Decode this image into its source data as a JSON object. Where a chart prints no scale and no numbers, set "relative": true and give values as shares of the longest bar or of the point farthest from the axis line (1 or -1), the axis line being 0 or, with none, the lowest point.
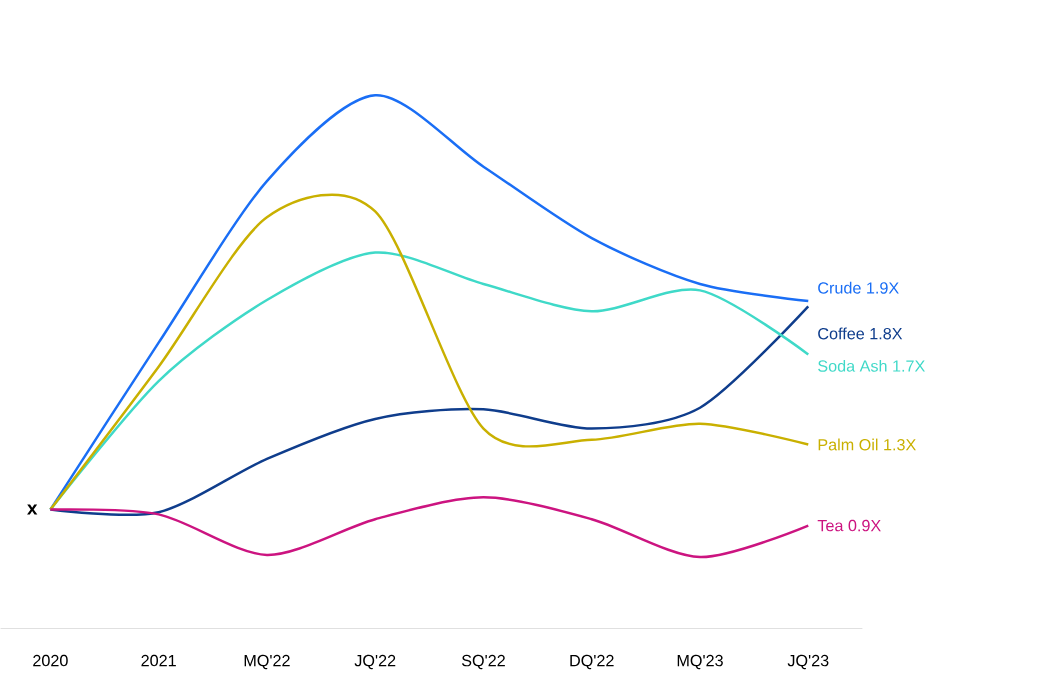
{
  "chart_data": {
    "type": "line",
    "relative": true,
    "categories": [
      "2020",
      "2021",
      "MQ'22",
      "JQ'22",
      "SQ'22",
      "DQ'22",
      "MQ'23",
      "JQ'23"
    ],
    "series": [
      {
        "name": "Crude 1.9X",
        "color": "#1a6ef5",
        "values": [
          0.223,
          0.536,
          0.839,
          1,
          0.866,
          0.732,
          0.646,
          0.614
        ]
      },
      {
        "name": "Coffee 1.8X",
        "color": "#0f3d8c",
        "values": [
          0.223,
          0.218,
          0.318,
          0.393,
          0.411,
          0.375,
          0.414,
          0.604
        ]
      },
      {
        "name": "Soda Ash 1.7X",
        "color": "#3fd9c8",
        "values": [
          0.223,
          0.464,
          0.616,
          0.705,
          0.646,
          0.595,
          0.634,
          0.514
        ]
      },
      {
        "name": "Palm Oil 1.3X",
        "color": "#c9b000",
        "values": [
          0.223,
          0.491,
          0.771,
          0.782,
          0.375,
          0.354,
          0.384,
          0.345
        ]
      },
      {
        "name": "Tea 0.9X",
        "color": "#cc1480",
        "values": [
          0.223,
          0.214,
          0.138,
          0.205,
          0.246,
          0.205,
          0.134,
          0.193
        ]
      }
    ],
    "annotations": [
      {
        "text": "x",
        "x": "2020",
        "y": 0.223
      }
    ],
    "grid": false,
    "legend": false,
    "marker": "none",
    "line_style": "solid"
  }
}
